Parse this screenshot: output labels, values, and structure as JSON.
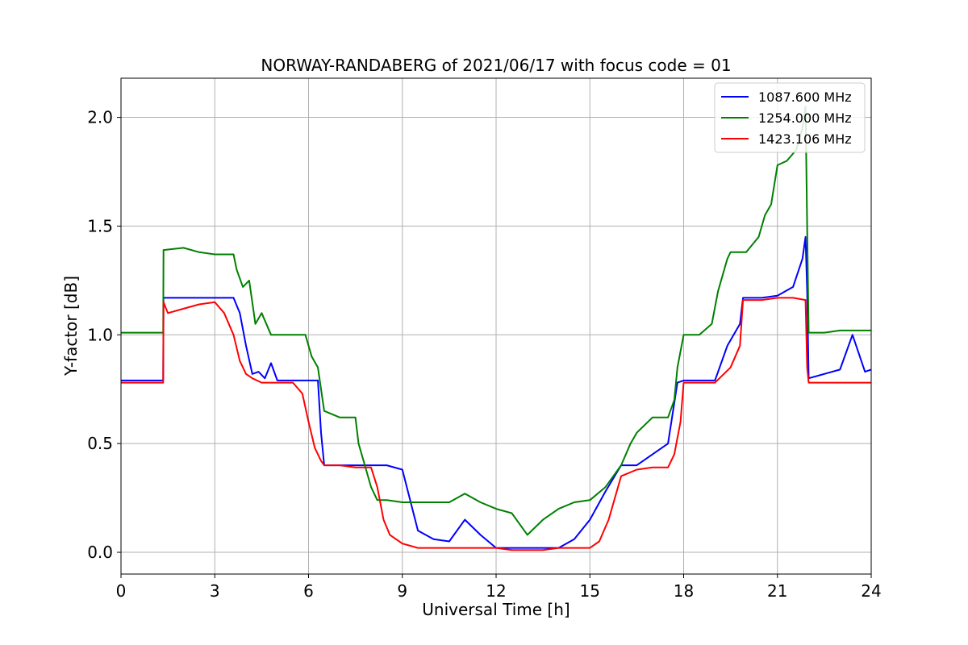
{
  "chart_data": {
    "type": "line",
    "title": "NORWAY-RANDABERG of 2021/06/17 with focus code = 01",
    "xlabel": "Universal Time [h]",
    "ylabel": "Y-factor [dB]",
    "xlim": [
      0,
      24
    ],
    "ylim": [
      -0.1,
      2.18
    ],
    "xticks": [
      0,
      3,
      6,
      9,
      12,
      15,
      18,
      21,
      24
    ],
    "xtick_labels": [
      "0",
      "3",
      "6",
      "9",
      "12",
      "15",
      "18",
      "21",
      "24"
    ],
    "yticks": [
      0.0,
      0.5,
      1.0,
      1.5,
      2.0
    ],
    "ytick_labels": [
      "0.0",
      "0.5",
      "1.0",
      "1.5",
      "2.0"
    ],
    "grid": true,
    "legend_position": "top-right",
    "series": [
      {
        "name": "1087.600 MHz",
        "color": "#0000ff",
        "x": [
          0,
          1.35,
          1.36,
          2.5,
          3.6,
          3.8,
          4.0,
          4.2,
          4.4,
          4.6,
          4.8,
          5.0,
          5.5,
          6.0,
          6.3,
          6.4,
          6.5,
          7.0,
          7.5,
          8.0,
          8.5,
          9.0,
          9.5,
          10.0,
          10.5,
          11.0,
          11.5,
          12.0,
          12.5,
          13.0,
          13.5,
          14.0,
          14.5,
          15.0,
          15.5,
          16.0,
          16.5,
          17.0,
          17.5,
          17.8,
          18.0,
          18.5,
          19.0,
          19.4,
          19.8,
          19.9,
          20.5,
          21.0,
          21.5,
          21.8,
          21.9,
          21.95,
          22.0,
          22.5,
          23.0,
          23.4,
          23.8,
          24
        ],
        "y": [
          0.79,
          0.79,
          1.17,
          1.17,
          1.17,
          1.1,
          0.95,
          0.82,
          0.83,
          0.8,
          0.87,
          0.79,
          0.79,
          0.79,
          0.79,
          0.55,
          0.4,
          0.4,
          0.4,
          0.4,
          0.4,
          0.38,
          0.1,
          0.06,
          0.05,
          0.15,
          0.08,
          0.02,
          0.02,
          0.02,
          0.02,
          0.02,
          0.06,
          0.15,
          0.28,
          0.4,
          0.4,
          0.45,
          0.5,
          0.78,
          0.79,
          0.79,
          0.79,
          0.95,
          1.05,
          1.17,
          1.17,
          1.18,
          1.22,
          1.35,
          1.45,
          1.2,
          0.8,
          0.82,
          0.84,
          1.0,
          0.83,
          0.84
        ]
      },
      {
        "name": "1254.000 MHz",
        "color": "#008000",
        "x": [
          0,
          1.35,
          1.36,
          2.0,
          2.5,
          3.0,
          3.6,
          3.7,
          3.9,
          4.1,
          4.3,
          4.5,
          4.8,
          5.0,
          5.5,
          5.9,
          6.1,
          6.3,
          6.5,
          7.0,
          7.5,
          7.6,
          7.8,
          8.0,
          8.2,
          8.5,
          9.0,
          9.5,
          10.0,
          10.5,
          11.0,
          11.5,
          12.0,
          12.5,
          13.0,
          13.5,
          14.0,
          14.5,
          15.0,
          15.5,
          16.0,
          16.3,
          16.5,
          17.0,
          17.5,
          17.7,
          17.8,
          18.0,
          18.5,
          18.9,
          19.1,
          19.4,
          19.5,
          20.0,
          20.4,
          20.6,
          20.8,
          21.0,
          21.3,
          21.6,
          21.8,
          21.9,
          21.95,
          22.0,
          22.5,
          23.0,
          23.5,
          24
        ],
        "y": [
          1.01,
          1.01,
          1.39,
          1.4,
          1.38,
          1.37,
          1.37,
          1.3,
          1.22,
          1.25,
          1.05,
          1.1,
          1.0,
          1.0,
          1.0,
          1.0,
          0.9,
          0.85,
          0.65,
          0.62,
          0.62,
          0.5,
          0.4,
          0.3,
          0.24,
          0.24,
          0.23,
          0.23,
          0.23,
          0.23,
          0.27,
          0.23,
          0.2,
          0.18,
          0.08,
          0.15,
          0.2,
          0.23,
          0.24,
          0.3,
          0.4,
          0.5,
          0.55,
          0.62,
          0.62,
          0.7,
          0.85,
          1.0,
          1.0,
          1.05,
          1.2,
          1.35,
          1.38,
          1.38,
          1.45,
          1.55,
          1.6,
          1.78,
          1.8,
          1.85,
          1.95,
          2.05,
          1.5,
          1.01,
          1.01,
          1.02,
          1.02,
          1.02
        ]
      },
      {
        "name": "1423.106 MHz",
        "color": "#ff0000",
        "x": [
          0,
          1.35,
          1.36,
          1.5,
          2.0,
          2.5,
          3.0,
          3.3,
          3.6,
          3.8,
          4.0,
          4.2,
          4.5,
          5.0,
          5.5,
          5.8,
          6.0,
          6.2,
          6.4,
          6.5,
          7.0,
          7.5,
          8.0,
          8.2,
          8.4,
          8.6,
          9.0,
          9.5,
          10.0,
          10.5,
          11.0,
          11.5,
          12.0,
          12.5,
          13.0,
          13.5,
          14.0,
          14.5,
          15.0,
          15.3,
          15.6,
          16.0,
          16.5,
          17.0,
          17.5,
          17.7,
          17.9,
          18.0,
          18.5,
          19.0,
          19.5,
          19.8,
          19.9,
          20.5,
          21.0,
          21.5,
          21.9,
          21.95,
          22.0,
          22.5,
          23.0,
          24
        ],
        "y": [
          0.78,
          0.78,
          1.15,
          1.1,
          1.12,
          1.14,
          1.15,
          1.1,
          1.0,
          0.88,
          0.82,
          0.8,
          0.78,
          0.78,
          0.78,
          0.73,
          0.6,
          0.48,
          0.42,
          0.4,
          0.4,
          0.39,
          0.39,
          0.3,
          0.15,
          0.08,
          0.04,
          0.02,
          0.02,
          0.02,
          0.02,
          0.02,
          0.02,
          0.01,
          0.01,
          0.01,
          0.02,
          0.02,
          0.02,
          0.05,
          0.15,
          0.35,
          0.38,
          0.39,
          0.39,
          0.45,
          0.6,
          0.78,
          0.78,
          0.78,
          0.85,
          0.95,
          1.16,
          1.16,
          1.17,
          1.17,
          1.16,
          0.85,
          0.78,
          0.78,
          0.78,
          0.78
        ]
      }
    ]
  }
}
